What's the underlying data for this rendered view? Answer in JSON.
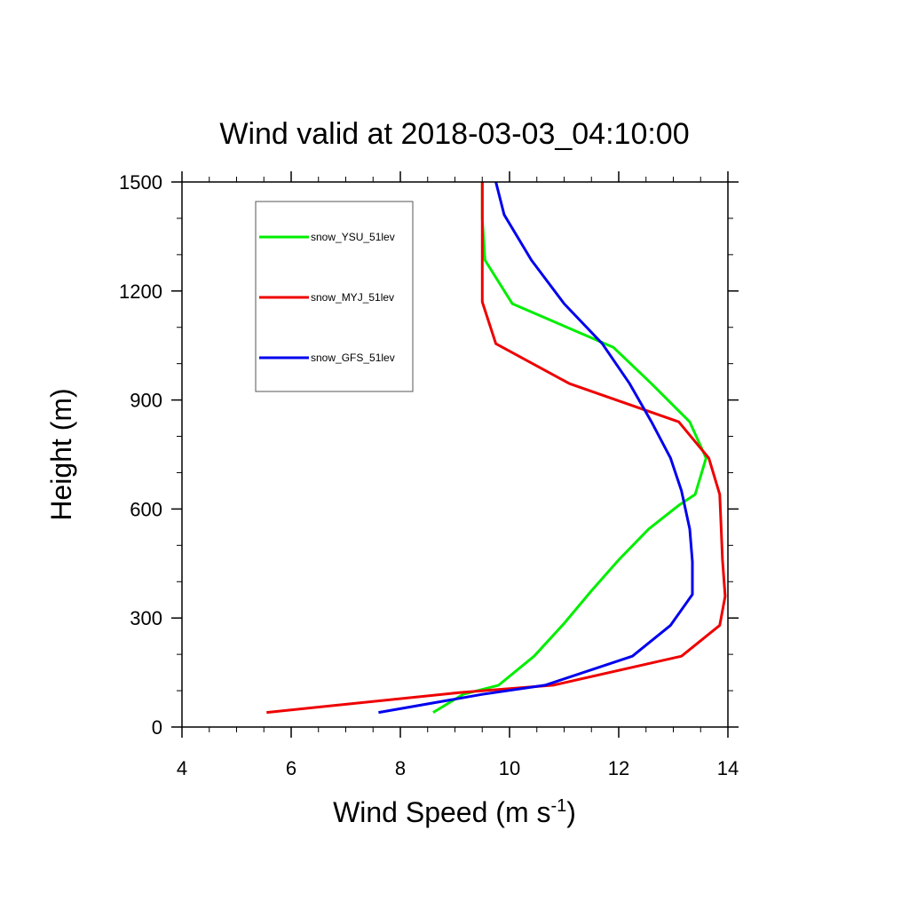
{
  "chart_data": {
    "type": "line",
    "title": "Wind valid at 2018-03-03_04:10:00",
    "xlabel": "Wind Speed (m s",
    "xlabel_sup": "-1",
    "xlabel_close": ")",
    "ylabel": "Height (m)",
    "xlim": [
      4,
      14
    ],
    "ylim": [
      0,
      1500
    ],
    "x_ticks": [
      "4",
      "6",
      "8",
      "10",
      "12",
      "14"
    ],
    "y_ticks": [
      "0",
      "300",
      "600",
      "900",
      "1200",
      "1500"
    ],
    "grid": false,
    "legend_position": "top-left",
    "series": [
      {
        "name": "snow_YSU_51lev",
        "color": "#00ee00",
        "points": [
          [
            8.6,
            40
          ],
          [
            9.15,
            90
          ],
          [
            9.8,
            115
          ],
          [
            10.45,
            195
          ],
          [
            11.0,
            285
          ],
          [
            11.5,
            375
          ],
          [
            12.0,
            460
          ],
          [
            12.55,
            545
          ],
          [
            13.1,
            610
          ],
          [
            13.4,
            640
          ],
          [
            13.6,
            740
          ],
          [
            13.3,
            840
          ],
          [
            12.6,
            945
          ],
          [
            11.9,
            1045
          ],
          [
            10.05,
            1165
          ],
          [
            9.55,
            1285
          ],
          [
            9.5,
            1400
          ],
          [
            9.5,
            1500
          ]
        ]
      },
      {
        "name": "snow_MYJ_51lev",
        "color": "#ee0000",
        "points": [
          [
            5.55,
            40
          ],
          [
            9.1,
            95
          ],
          [
            10.8,
            115
          ],
          [
            13.15,
            195
          ],
          [
            13.85,
            280
          ],
          [
            13.95,
            360
          ],
          [
            13.9,
            460
          ],
          [
            13.85,
            640
          ],
          [
            13.65,
            740
          ],
          [
            13.1,
            840
          ],
          [
            11.1,
            945
          ],
          [
            9.75,
            1055
          ],
          [
            9.5,
            1170
          ],
          [
            9.5,
            1300
          ],
          [
            9.5,
            1500
          ]
        ]
      },
      {
        "name": "snow_GFS_51lev",
        "color": "#0000ee",
        "points": [
          [
            7.6,
            40
          ],
          [
            9.5,
            90
          ],
          [
            10.65,
            115
          ],
          [
            12.25,
            195
          ],
          [
            12.95,
            280
          ],
          [
            13.35,
            365
          ],
          [
            13.35,
            455
          ],
          [
            13.3,
            545
          ],
          [
            13.15,
            650
          ],
          [
            12.95,
            740
          ],
          [
            12.6,
            840
          ],
          [
            12.2,
            945
          ],
          [
            11.7,
            1055
          ],
          [
            11.0,
            1165
          ],
          [
            10.4,
            1285
          ],
          [
            9.9,
            1410
          ],
          [
            9.75,
            1500
          ]
        ]
      }
    ]
  }
}
